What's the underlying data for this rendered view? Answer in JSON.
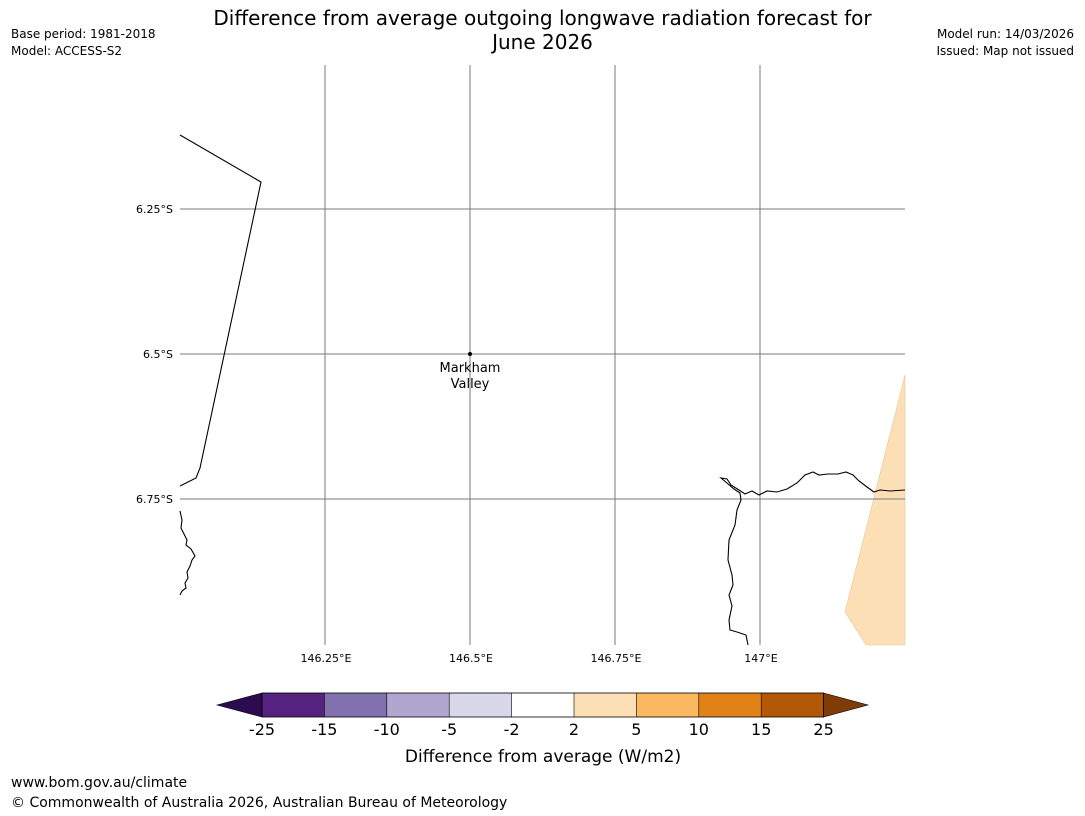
{
  "header": {
    "title_line1": "Difference from average outgoing longwave radiation forecast for",
    "title_line2": "June 2026",
    "base_period": "Base period: 1981-2018",
    "model": "Model: ACCESS-S2",
    "model_run": "Model run: 14/03/2026",
    "issued": "Issued: Map not issued"
  },
  "map": {
    "lat_labels": [
      "6.25°S",
      "6.5°S",
      "6.75°S"
    ],
    "lon_labels": [
      "146.25°E",
      "146.5°E",
      "146.75°E",
      "147°E"
    ],
    "place": {
      "line1": "Markham",
      "line2": "Valley"
    },
    "anomaly_fill_color": "#fddfb5"
  },
  "colorbar": {
    "ticks": [
      "-25",
      "-15",
      "-10",
      "-5",
      "-2",
      "2",
      "5",
      "10",
      "15",
      "25"
    ],
    "colors": [
      "#2d0b4f",
      "#55237f",
      "#8171ae",
      "#b0a7d1",
      "#d9d8ea",
      "#ffffff",
      "#fddfb5",
      "#fbb761",
      "#e08217",
      "#b35806",
      "#7f3b08"
    ],
    "label": "Difference from average (W/m2)"
  },
  "footer": {
    "url": "www.bom.gov.au/climate",
    "copyright": "© Commonwealth of Australia 2026, Australian Bureau of Meteorology"
  }
}
